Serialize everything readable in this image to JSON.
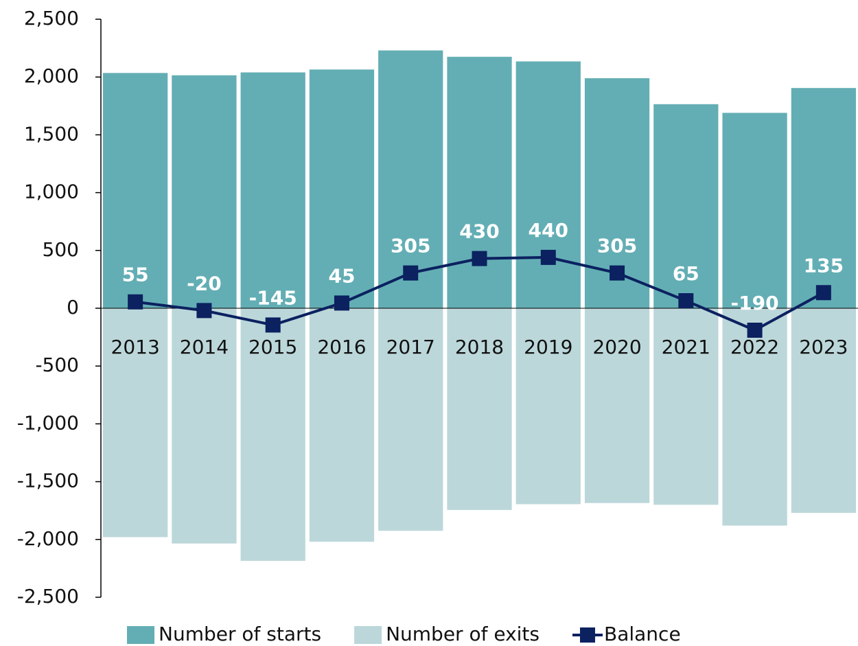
{
  "chart_data": {
    "type": "bar",
    "categories": [
      "2013",
      "2014",
      "2015",
      "2016",
      "2017",
      "2018",
      "2019",
      "2020",
      "2021",
      "2022",
      "2023"
    ],
    "series": [
      {
        "name": "Number of starts",
        "color": "#63aeb4",
        "values": [
          2035,
          2015,
          2040,
          2065,
          2230,
          2175,
          2135,
          1990,
          1765,
          1690,
          1905
        ]
      },
      {
        "name": "Number of exits",
        "color": "#bcd7da",
        "values": [
          -1980,
          -2035,
          -2185,
          -2020,
          -1925,
          -1745,
          -1695,
          -1685,
          -1700,
          -1880,
          -1770
        ]
      },
      {
        "name": "Balance",
        "type": "line",
        "color": "#0b2160",
        "values": [
          55,
          -20,
          -145,
          45,
          305,
          430,
          440,
          305,
          65,
          -190,
          135
        ]
      }
    ],
    "ylim": [
      -2500,
      2500
    ],
    "yticks": [
      {
        "value": -2500,
        "label": "-2,500"
      },
      {
        "value": -2000,
        "label": "-2,000"
      },
      {
        "value": -1500,
        "label": "-1,500"
      },
      {
        "value": -1000,
        "label": "-1,000"
      },
      -500,
      0,
      500,
      {
        "value": 1000,
        "label": "1,000"
      },
      {
        "value": 1500,
        "label": "1,500"
      },
      {
        "value": 2000,
        "label": "2,000"
      },
      {
        "value": 2500,
        "label": "2,500"
      }
    ],
    "legend": "bottom"
  }
}
